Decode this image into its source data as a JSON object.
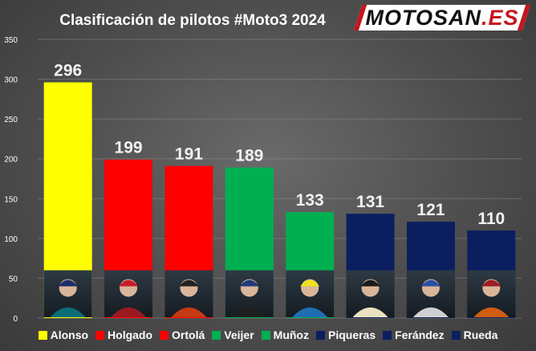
{
  "title": "Clasificación de pilotos #Moto3 2024",
  "logo": {
    "main": "MOTOSAN",
    "suffix": ".ES",
    "text_color": "#111111",
    "accent_color": "#c4161c"
  },
  "chart_data": {
    "type": "bar",
    "title": "Clasificación de pilotos #Moto3 2024",
    "categories": [
      "Alonso",
      "Holgado",
      "Ortolá",
      "Veijer",
      "Muñoz",
      "Piqueras",
      "Ferández",
      "Rueda"
    ],
    "values": [
      296,
      199,
      191,
      189,
      133,
      131,
      121,
      110
    ],
    "data_labels": [
      "296",
      "199",
      "191",
      "189",
      "133",
      "131",
      "121",
      "110"
    ],
    "colors": [
      "#ffff00",
      "#ff0000",
      "#ff0000",
      "#00b050",
      "#00b050",
      "#0b1f60",
      "#0b1f60",
      "#0b1f60"
    ],
    "ylim": [
      0,
      350
    ],
    "yticks": [
      0,
      50,
      100,
      150,
      200,
      250,
      300,
      350
    ],
    "ytick_labels": [
      "0",
      "50",
      "100",
      "150",
      "200",
      "250",
      "300",
      "350"
    ],
    "grid": true,
    "legend": "bottom",
    "bar_images": "rider portrait photo at bar base",
    "xlabel": "",
    "ylabel": ""
  }
}
